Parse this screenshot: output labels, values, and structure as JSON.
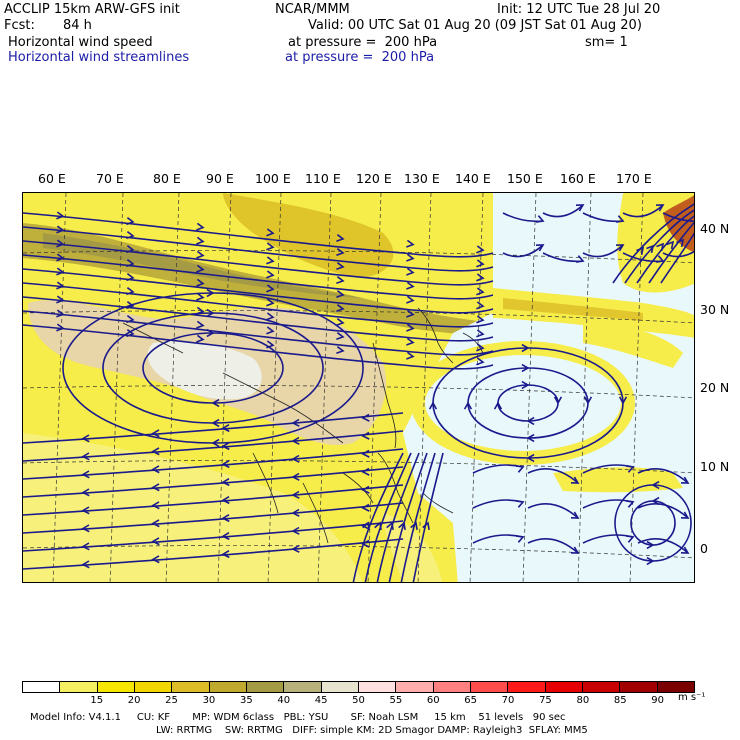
{
  "header": {
    "model": "ACCLIP 15km ARW-GFS init",
    "org": "NCAR/MMM",
    "init": "Init: 12 UTC Tue 28 Jul 20",
    "fcst_label": "Fcst:",
    "fcst_value": "84 h",
    "valid": "Valid: 00 UTC Sat 01 Aug 20 (09 JST Sat 01 Aug 20)",
    "field1_name": "Horizontal wind speed",
    "field1_level": "at pressure =  200 hPa",
    "field1_sm": "sm= 1",
    "field2_name": "Horizontal wind streamlines",
    "field2_level": "at pressure =  200 hPa"
  },
  "map": {
    "lon_labels": [
      "60 E",
      "70 E",
      "80 E",
      "90 E",
      "100 E",
      "110 E",
      "120 E",
      "130 E",
      "140 E",
      "150 E",
      "160 E",
      "170 E"
    ],
    "lat_labels": [
      "40 N",
      "30 N",
      "20 N",
      "10 N",
      "0"
    ],
    "streamline_color": "#1a1a8c",
    "features": [
      "jet stream over Tibetan plateau",
      "anticyclone over western Pacific near 140 E 20 N",
      "cyclonic vortex near 170 E 0"
    ]
  },
  "colorbar": {
    "labels": [
      "15",
      "20",
      "25",
      "30",
      "35",
      "40",
      "45",
      "50",
      "55",
      "60",
      "65",
      "70",
      "75",
      "80",
      "85",
      "90"
    ],
    "colors": [
      "#ffffff",
      "#f5f061",
      "#f7e600",
      "#f2d600",
      "#dcbd27",
      "#bfa92f",
      "#a69b45",
      "#b8b07a",
      "#e6e3cf",
      "#ffe0e0",
      "#ffadad",
      "#ff8080",
      "#ff4d4d",
      "#ff1a1a",
      "#e60000",
      "#c80000",
      "#a00000",
      "#7a0000"
    ],
    "units": "m s⁻¹"
  },
  "footer": {
    "line1": "Model Info: V4.1.1     CU: KF       MP: WDM 6class   PBL: YSU       SF: Noah LSM     15 km    51 levels   90 sec",
    "line2": "LW: RRTMG    SW: RRTMG   DIFF: simple KM: 2D Smagor DAMP: Rayleigh3  SFLAY: MM5"
  }
}
